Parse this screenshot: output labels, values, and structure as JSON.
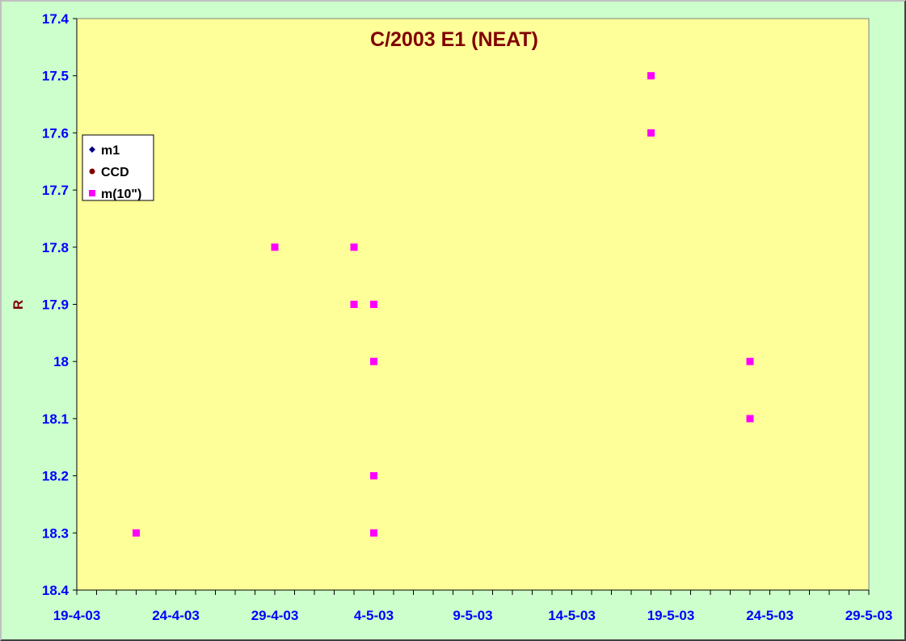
{
  "chart_data": {
    "type": "scatter",
    "title": "C/2003 E1 (NEAT)",
    "xlabel": "",
    "ylabel": "R",
    "x_axis": {
      "type": "date",
      "range": [
        "2003-04-19",
        "2003-05-29"
      ],
      "tick_labels": [
        "19-4-03",
        "24-4-03",
        "29-4-03",
        "4-5-03",
        "9-5-03",
        "14-5-03",
        "19-5-03",
        "24-5-03",
        "29-5-03"
      ]
    },
    "y_axis": {
      "range": [
        17.4,
        18.4
      ],
      "reversed": true,
      "tick_labels": [
        "17.4",
        "17.5",
        "17.6",
        "17.7",
        "17.8",
        "17.9",
        "18",
        "18.1",
        "18.2",
        "18.3",
        "18.4"
      ]
    },
    "grid": false,
    "legend": "left",
    "series": [
      {
        "name": "m1",
        "color": "#000080",
        "marker": "diamond",
        "points": []
      },
      {
        "name": "CCD",
        "color": "#800000",
        "marker": "circle",
        "points": []
      },
      {
        "name": "m(10\")",
        "color": "#ff00ff",
        "marker": "square",
        "points": [
          {
            "x": "2003-04-22",
            "y": 18.3
          },
          {
            "x": "2003-04-29",
            "y": 17.8
          },
          {
            "x": "2003-05-03",
            "y": 17.8
          },
          {
            "x": "2003-05-03",
            "y": 17.9
          },
          {
            "x": "2003-05-04",
            "y": 17.9
          },
          {
            "x": "2003-05-04",
            "y": 18.0
          },
          {
            "x": "2003-05-04",
            "y": 18.2
          },
          {
            "x": "2003-05-04",
            "y": 18.3
          },
          {
            "x": "2003-05-18",
            "y": 17.5
          },
          {
            "x": "2003-05-18",
            "y": 17.6
          },
          {
            "x": "2003-05-23",
            "y": 18.0
          },
          {
            "x": "2003-05-23",
            "y": 18.1
          }
        ]
      }
    ],
    "colors": {
      "background": "#ccffcc",
      "plot_area": "#ffff99",
      "axis": "#000000",
      "tick_text": "#0000ff",
      "title_text": "#800000"
    }
  }
}
